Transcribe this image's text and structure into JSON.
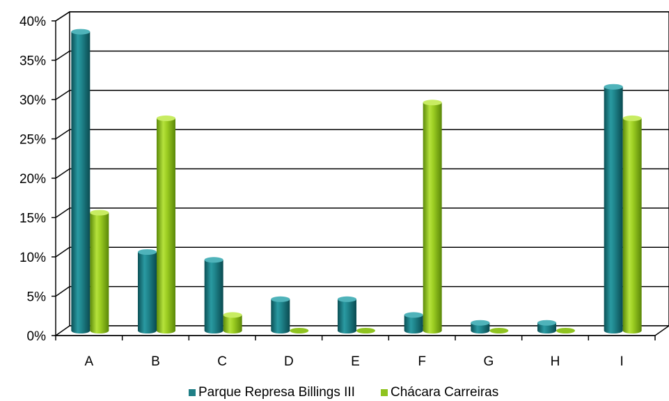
{
  "chart_data": {
    "type": "bar",
    "title": "",
    "xlabel": "",
    "ylabel": "",
    "categories": [
      "A",
      "B",
      "C",
      "D",
      "E",
      "F",
      "G",
      "H",
      "I"
    ],
    "series": [
      {
        "name": "Parque Represa Billings III",
        "color": "#1f7f86",
        "values": [
          38,
          10,
          9,
          4,
          4,
          2,
          1,
          1,
          31
        ]
      },
      {
        "name": "Chácara Carreiras",
        "color": "#8fc31f",
        "values": [
          15,
          27,
          2,
          0,
          0,
          29,
          0,
          0,
          27
        ]
      }
    ],
    "ylim": [
      0,
      40
    ],
    "yticks": [
      "0%",
      "5%",
      "10%",
      "15%",
      "20%",
      "25%",
      "30%",
      "35%",
      "40%"
    ],
    "grid": true,
    "legend": "bottom"
  }
}
